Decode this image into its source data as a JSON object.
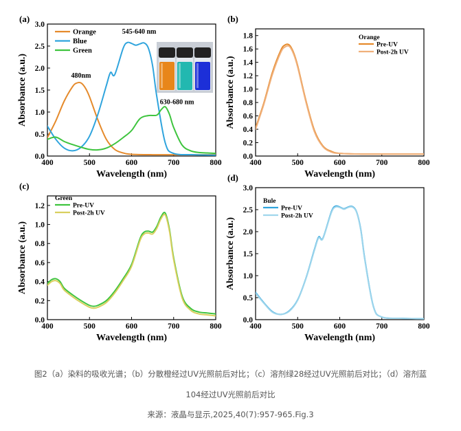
{
  "panels": [
    {
      "id": "a",
      "label": "(a)",
      "chart_data": {
        "type": "line",
        "xlabel": "Wavelength (nm)",
        "ylabel": "Absorbance (a.u.)",
        "xlim": [
          400,
          800
        ],
        "ylim": [
          0,
          3.0
        ],
        "xticks": [
          400,
          500,
          600,
          700,
          800
        ],
        "yticks": [
          0.0,
          0.5,
          1.0,
          1.5,
          2.0,
          2.5,
          3.0
        ],
        "ytick_decimals": 1,
        "legend_position": "top-left",
        "series": [
          {
            "name": "Orange",
            "color": "#e58a2b",
            "x": [
              400,
              420,
              440,
              460,
              470,
              480,
              490,
              500,
              520,
              540,
              560,
              580,
              600,
              650,
              700,
              750,
              800
            ],
            "y": [
              0.42,
              0.8,
              1.25,
              1.58,
              1.66,
              1.66,
              1.55,
              1.35,
              0.82,
              0.38,
              0.15,
              0.07,
              0.04,
              0.03,
              0.03,
              0.03,
              0.03
            ]
          },
          {
            "name": "Blue",
            "color": "#2fa4dd",
            "x": [
              400,
              420,
              440,
              460,
              480,
              500,
              520,
              540,
              550,
              560,
              580,
              590,
              600,
              610,
              620,
              630,
              640,
              650,
              660,
              680,
              700,
              750,
              800
            ],
            "y": [
              0.68,
              0.38,
              0.18,
              0.12,
              0.2,
              0.45,
              0.95,
              1.6,
              1.9,
              1.85,
              2.45,
              2.58,
              2.56,
              2.52,
              2.55,
              2.57,
              2.45,
              2.05,
              1.35,
              0.3,
              0.06,
              0.03,
              0.02
            ]
          },
          {
            "name": "Green",
            "color": "#3ec43e",
            "x": [
              400,
              420,
              440,
              460,
              480,
              500,
              520,
              540,
              560,
              580,
              600,
              620,
              640,
              660,
              670,
              680,
              690,
              700,
              720,
              740,
              760,
              780,
              800
            ],
            "y": [
              0.38,
              0.43,
              0.33,
              0.26,
              0.2,
              0.15,
              0.14,
              0.18,
              0.28,
              0.42,
              0.58,
              0.85,
              0.92,
              0.93,
              1.05,
              1.12,
              0.95,
              0.65,
              0.25,
              0.12,
              0.08,
              0.07,
              0.06
            ]
          }
        ],
        "annotations": [
          {
            "text": "480nm",
            "x": 480,
            "y": 1.78
          },
          {
            "text": "545-640 nm",
            "x": 618,
            "y": 2.78
          },
          {
            "text": "630-680 nm",
            "x": 708,
            "y": 1.18
          }
        ]
      }
    },
    {
      "id": "b",
      "label": "(b)",
      "chart_data": {
        "type": "line",
        "xlabel": "Wavelength (nm)",
        "ylabel": "Absorbance (a.u.)",
        "xlim": [
          400,
          800
        ],
        "ylim": [
          0,
          1.9
        ],
        "xticks": [
          400,
          500,
          600,
          700,
          800
        ],
        "yticks": [
          0.0,
          0.2,
          0.4,
          0.6,
          0.8,
          1.0,
          1.2,
          1.4,
          1.6,
          1.8
        ],
        "ytick_decimals": 1,
        "legend_title": "Orange",
        "legend_position": "top-right",
        "series": [
          {
            "name": "Pre-UV",
            "color": "#e58a2b",
            "x": [
              400,
              420,
              440,
              460,
              470,
              480,
              490,
              500,
              520,
              540,
              560,
              580,
              600,
              650,
              700,
              750,
              800
            ],
            "y": [
              0.42,
              0.8,
              1.25,
              1.58,
              1.66,
              1.66,
              1.55,
              1.35,
              0.82,
              0.38,
              0.15,
              0.07,
              0.04,
              0.03,
              0.03,
              0.03,
              0.03
            ]
          },
          {
            "name": "Post-2h UV",
            "color": "#f0b07a",
            "x": [
              400,
              420,
              440,
              460,
              470,
              480,
              490,
              500,
              520,
              540,
              560,
              580,
              600,
              650,
              700,
              750,
              800
            ],
            "y": [
              0.4,
              0.78,
              1.22,
              1.55,
              1.63,
              1.64,
              1.53,
              1.33,
              0.8,
              0.36,
              0.14,
              0.06,
              0.04,
              0.03,
              0.03,
              0.03,
              0.03
            ]
          }
        ]
      }
    },
    {
      "id": "c",
      "label": "(c)",
      "chart_data": {
        "type": "line",
        "xlabel": "Wavelength (nm)",
        "ylabel": "Absorbance (a.u.)",
        "xlim": [
          400,
          800
        ],
        "ylim": [
          0,
          1.3
        ],
        "xticks": [
          400,
          500,
          600,
          700,
          800
        ],
        "yticks": [
          0.0,
          0.2,
          0.4,
          0.6,
          0.8,
          1.0,
          1.2
        ],
        "ytick_decimals": 1,
        "legend_title": "Green",
        "legend_position": "top-left",
        "series": [
          {
            "name": "Pre-UV",
            "color": "#3ec43e",
            "x": [
              400,
              410,
              420,
              430,
              440,
              460,
              480,
              500,
              510,
              520,
              540,
              560,
              580,
              600,
              620,
              630,
              640,
              650,
              660,
              670,
              680,
              690,
              700,
              720,
              740,
              760,
              780,
              800
            ],
            "y": [
              0.38,
              0.42,
              0.43,
              0.4,
              0.33,
              0.26,
              0.2,
              0.15,
              0.14,
              0.15,
              0.2,
              0.3,
              0.43,
              0.58,
              0.85,
              0.92,
              0.93,
              0.92,
              0.98,
              1.08,
              1.12,
              0.95,
              0.65,
              0.25,
              0.12,
              0.08,
              0.07,
              0.06
            ]
          },
          {
            "name": "Post-2h UV",
            "color": "#d9cf5e",
            "x": [
              400,
              410,
              420,
              430,
              440,
              460,
              480,
              500,
              510,
              520,
              540,
              560,
              580,
              600,
              620,
              630,
              640,
              650,
              660,
              670,
              680,
              690,
              700,
              720,
              740,
              760,
              780,
              800
            ],
            "y": [
              0.36,
              0.4,
              0.41,
              0.38,
              0.31,
              0.24,
              0.18,
              0.13,
              0.12,
              0.13,
              0.18,
              0.28,
              0.41,
              0.56,
              0.83,
              0.9,
              0.91,
              0.9,
              0.96,
              1.06,
              1.1,
              0.93,
              0.63,
              0.23,
              0.1,
              0.06,
              0.05,
              0.04
            ]
          }
        ]
      }
    },
    {
      "id": "d",
      "label": "(d)",
      "chart_data": {
        "type": "line",
        "xlabel": "Wavelength (nm)",
        "ylabel": "Absorbance (a.u.)",
        "xlim": [
          400,
          800
        ],
        "ylim": [
          0,
          3.0
        ],
        "xticks": [
          400,
          500,
          600,
          700,
          800
        ],
        "yticks": [
          0.0,
          0.5,
          1.0,
          1.5,
          2.0,
          2.5,
          3.0
        ],
        "ytick_decimals": 1,
        "legend_title": "Bule",
        "legend_position": "top-left",
        "series": [
          {
            "name": "Pre-UV",
            "color": "#2fa4dd",
            "x": [
              400,
              420,
              440,
              460,
              480,
              500,
              520,
              540,
              550,
              560,
              580,
              590,
              600,
              610,
              620,
              630,
              640,
              650,
              660,
              680,
              700,
              750,
              800
            ],
            "y": [
              0.62,
              0.38,
              0.18,
              0.12,
              0.2,
              0.45,
              0.95,
              1.6,
              1.88,
              1.85,
              2.45,
              2.58,
              2.56,
              2.52,
              2.56,
              2.57,
              2.45,
              2.05,
              1.35,
              0.3,
              0.06,
              0.03,
              0.02
            ]
          },
          {
            "name": "Post-2h UV",
            "color": "#9fd6ec",
            "x": [
              400,
              420,
              440,
              460,
              480,
              500,
              520,
              540,
              550,
              560,
              580,
              590,
              600,
              610,
              620,
              630,
              640,
              650,
              660,
              680,
              700,
              750,
              800
            ],
            "y": [
              0.6,
              0.37,
              0.17,
              0.12,
              0.19,
              0.44,
              0.94,
              1.58,
              1.86,
              1.84,
              2.43,
              2.56,
              2.55,
              2.51,
              2.55,
              2.56,
              2.44,
              2.03,
              1.33,
              0.29,
              0.06,
              0.03,
              0.02
            ]
          }
        ]
      }
    }
  ],
  "inset_colors": [
    "#e8861a",
    "#22b8b0",
    "#1c2fd8"
  ],
  "caption": {
    "line1": "图2（a）染料的吸收光谱；（b）分散橙经过UV光照前后对比；（c）溶剂绿28经过UV光照前后对比；（d）溶剂蓝",
    "line2": "104经过UV光照前后对比",
    "source": "来源：液晶与显示,2025,40(7):957-965.Fig.3"
  }
}
